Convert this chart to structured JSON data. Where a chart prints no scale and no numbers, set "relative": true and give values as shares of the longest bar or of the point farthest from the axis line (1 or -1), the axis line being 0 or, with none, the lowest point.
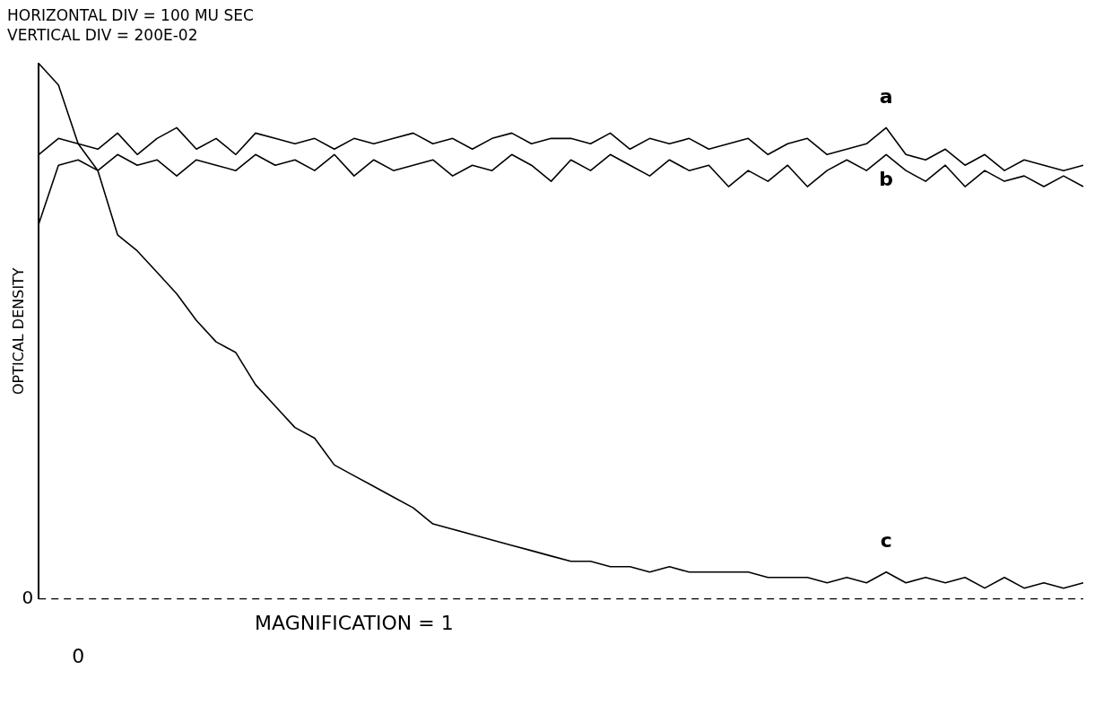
{
  "chart_data": {
    "type": "line",
    "relative": true,
    "title": "HORIZONTAL DIV = 100 MU SEC",
    "subtitle": "VERTICAL DIV = 200E-02",
    "ylabel": "OPTICAL DENSITY",
    "annotations": [
      "MAGNIFICATION = 1",
      "0"
    ],
    "categories": [
      null,
      null,
      null,
      null,
      null,
      null,
      null,
      null,
      null,
      null,
      null,
      null,
      null,
      null,
      null,
      null,
      null,
      null,
      null,
      null,
      null,
      null,
      null,
      null,
      null,
      null,
      null,
      null,
      null,
      null,
      null,
      null,
      null,
      null,
      null,
      null,
      null,
      null,
      null,
      null,
      null,
      null,
      null,
      null,
      null,
      null,
      null,
      null,
      null,
      null,
      null,
      null,
      null,
      null
    ],
    "marker": "none",
    "line_style": "solid",
    "legend": false,
    "grid": false,
    "ref_lines": [
      {
        "axis": "y",
        "value": 0,
        "label": "0",
        "line_style": "dashed",
        "color": "#000000"
      }
    ],
    "series": [
      {
        "name": "a",
        "color": "#000000",
        "values": [
          0.83,
          0.86,
          0.85,
          0.84,
          0.87,
          0.83,
          0.86,
          0.88,
          0.84,
          0.86,
          0.83,
          0.87,
          0.86,
          0.85,
          0.86,
          0.84,
          0.86,
          0.85,
          0.86,
          0.87,
          0.85,
          0.86,
          0.84,
          0.86,
          0.87,
          0.85,
          0.86,
          0.86,
          0.85,
          0.87,
          0.84,
          0.86,
          0.85,
          0.86,
          0.84,
          0.85,
          0.86,
          0.83,
          0.85,
          0.86,
          0.83,
          0.84,
          0.85,
          0.88,
          0.83,
          0.82,
          0.84,
          0.81,
          0.83,
          0.8,
          0.82,
          0.81,
          0.8,
          0.81
        ]
      },
      {
        "name": "b",
        "color": "#000000",
        "values": [
          0.7,
          0.81,
          0.82,
          0.8,
          0.83,
          0.81,
          0.82,
          0.79,
          0.82,
          0.81,
          0.8,
          0.83,
          0.81,
          0.82,
          0.8,
          0.83,
          0.79,
          0.82,
          0.8,
          0.81,
          0.82,
          0.79,
          0.81,
          0.8,
          0.83,
          0.81,
          0.78,
          0.82,
          0.8,
          0.83,
          0.81,
          0.79,
          0.82,
          0.8,
          0.81,
          0.77,
          0.8,
          0.78,
          0.81,
          0.77,
          0.8,
          0.82,
          0.8,
          0.83,
          0.8,
          0.78,
          0.81,
          0.77,
          0.8,
          0.78,
          0.79,
          0.77,
          0.79,
          0.77
        ]
      },
      {
        "name": "c",
        "color": "#000000",
        "values": [
          1.0,
          0.96,
          0.85,
          0.8,
          0.68,
          0.65,
          0.61,
          0.57,
          0.52,
          0.48,
          0.46,
          0.4,
          0.36,
          0.32,
          0.3,
          0.25,
          0.23,
          0.21,
          0.19,
          0.17,
          0.14,
          0.13,
          0.12,
          0.11,
          0.1,
          0.09,
          0.08,
          0.07,
          0.07,
          0.06,
          0.06,
          0.05,
          0.06,
          0.05,
          0.05,
          0.05,
          0.05,
          0.04,
          0.04,
          0.04,
          0.03,
          0.04,
          0.03,
          0.05,
          0.03,
          0.04,
          0.03,
          0.04,
          0.02,
          0.04,
          0.02,
          0.03,
          0.02,
          0.03
        ]
      }
    ]
  }
}
